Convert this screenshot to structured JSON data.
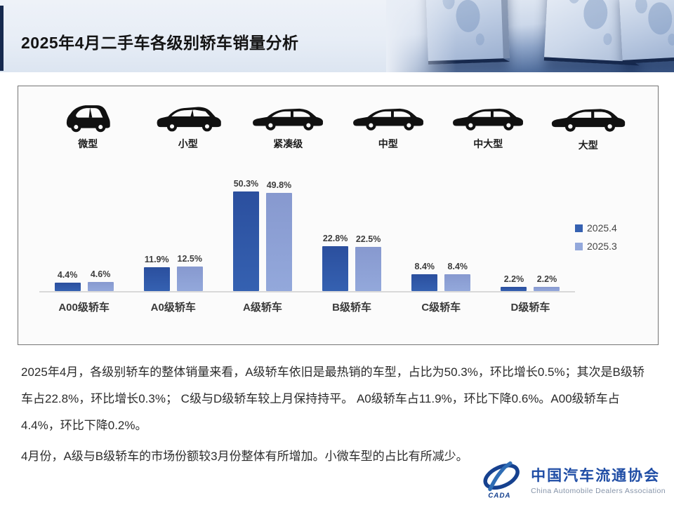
{
  "header": {
    "title": "2025年4月二手车各级别轿车销量分析"
  },
  "chart_data": {
    "type": "bar",
    "title": "2025年4月二手车各级别轿车销量分析",
    "categories": [
      "A00级轿车",
      "A0级轿车",
      "A级轿车",
      "B级轿车",
      "C级轿车",
      "D级轿车"
    ],
    "vehicle_types": [
      {
        "label": "微型",
        "icon": "microcar-icon"
      },
      {
        "label": "小型",
        "icon": "hatchback-icon"
      },
      {
        "label": "紧凑级",
        "icon": "compact-sedan-icon"
      },
      {
        "label": "中型",
        "icon": "midsize-sedan-icon"
      },
      {
        "label": "中大型",
        "icon": "large-midsize-sedan-icon"
      },
      {
        "label": "大型",
        "icon": "fullsize-sedan-icon"
      }
    ],
    "series": [
      {
        "name": "2025.4",
        "color": "#3561b1",
        "color_top": "#2b4f9e",
        "values": [
          4.4,
          11.9,
          50.3,
          22.8,
          8.4,
          2.2
        ]
      },
      {
        "name": "2025.3",
        "color": "#93a8db",
        "color_top": "#8799cf",
        "values": [
          4.6,
          12.5,
          49.8,
          22.5,
          8.4,
          2.2
        ]
      }
    ],
    "value_suffix": "%",
    "ylabel": "",
    "xlabel": "",
    "ylim": [
      0,
      55
    ],
    "grid": false,
    "legend_position": "right"
  },
  "analysis": {
    "paragraph1": "2025年4月，各级别轿车的整体销量来看，A级轿车依旧是最热销的车型，占比为50.3%，环比增长0.5%；其次是B级轿车占22.8%，环比增长0.3%； C级与D级轿车较上月保持持平。 A0级轿车占11.9%，环比下降0.6%。A00级轿车占4.4%，环比下降0.2%。",
    "paragraph2": "4月份，A级与B级轿车的市场份额较3月份整体有所增加。小微车型的占比有所减少。"
  },
  "footer": {
    "logo_abbr": "CADA",
    "logo_text_cn": "中国汽车流通协会",
    "logo_text_en": "China Automobile Dealers Association",
    "brand_color": "#1f4da5"
  }
}
